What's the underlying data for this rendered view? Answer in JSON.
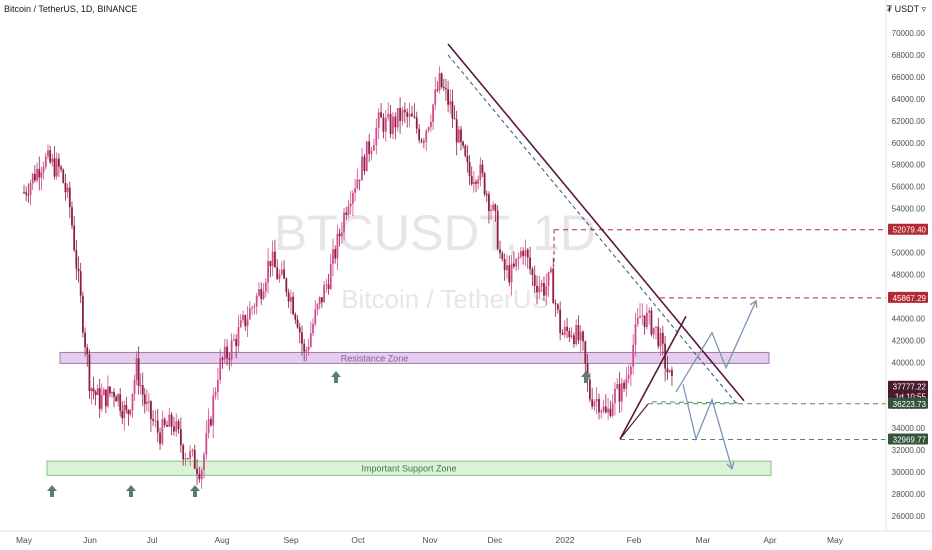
{
  "header": {
    "title": "Bitcoin / TetherUS, 1D, BINANCE",
    "currency": "₮ USDT ▿"
  },
  "watermark": {
    "symbol": "BTCUSDT, 1D",
    "name": "Bitcoin / TetherUS"
  },
  "chart_data": {
    "type": "candlestick",
    "x_tick_labels": [
      "May",
      "Jun",
      "Jul",
      "Aug",
      "Sep",
      "Oct",
      "Nov",
      "Dec",
      "2022",
      "Feb",
      "Mar",
      "Apr",
      "May"
    ],
    "y_tick_labels": [
      26000,
      28000,
      30000,
      32000,
      34000,
      36000,
      38000,
      40000,
      42000,
      44000,
      46000,
      48000,
      50000,
      52000,
      54000,
      56000,
      58000,
      60000,
      62000,
      64000,
      66000,
      68000,
      70000
    ],
    "ylim": [
      25000,
      72000
    ],
    "price_labels": [
      {
        "text": "52079.40",
        "value": 52079.4,
        "color": "#b22833"
      },
      {
        "text": "45867.29",
        "value": 45867.29,
        "color": "#b22833"
      },
      {
        "text": "37777.22",
        "value": 37777.22,
        "color": "#4a1b2a"
      },
      {
        "text": "1d 10:55",
        "value": 36900,
        "color": "#4a1b2a"
      },
      {
        "text": "36223.73",
        "value": 36223.73,
        "color": "#33543a"
      },
      {
        "text": "32969.77",
        "value": 32969.77,
        "color": "#33543a"
      }
    ],
    "zones": [
      {
        "label": "Resistance Zone",
        "low": 39900,
        "high": 40900,
        "fill": "#dfc6e8",
        "stroke": "#9b5aa8",
        "text_color": "#8a5a9a"
      },
      {
        "label": "Important Support Zone",
        "low": 29700,
        "high": 31000,
        "fill": "#d6efd4",
        "stroke": "#6bbf6b",
        "text_color": "#3f7a3f"
      }
    ],
    "key_prices": {
      "resistance_top": 52079.4,
      "resistance_mid": 45867.29,
      "support_1": 36223.73,
      "support_2": 32969.77,
      "last_close": 37777.22
    },
    "colors": {
      "up": "#26a69a",
      "down": "#ef5350",
      "candle_body": "#8b1f3f",
      "trendline": "#5a1838",
      "projection": "#7a95b8",
      "dashed_red": "#b22833",
      "dashed_green": "#4f8a58",
      "arrow_marker": "#5a7c7a"
    },
    "support_arrows": [
      "May",
      "Jun",
      "Jul"
    ],
    "resistance_arrows": [
      "Sep",
      "Jan"
    ]
  }
}
